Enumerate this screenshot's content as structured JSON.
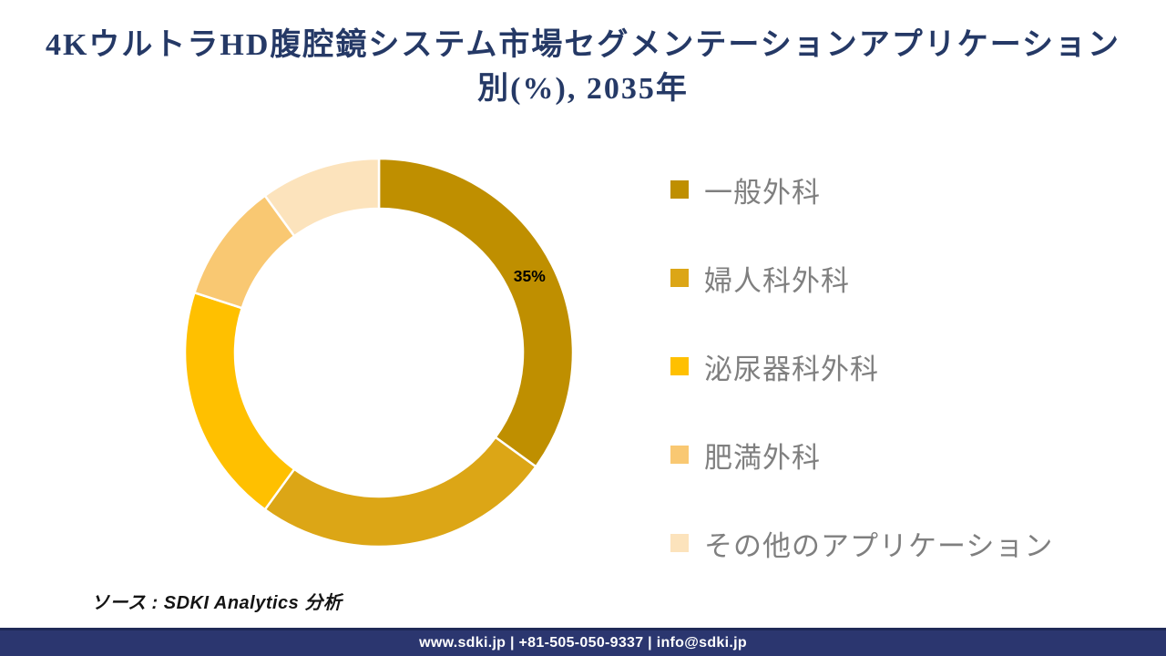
{
  "title": {
    "line1": "4KウルトラHD腹腔鏡システム市場セグメンテーションアプリケーション",
    "line2": "別(%), 2035年"
  },
  "chart_data": {
    "type": "pie",
    "subtype": "donut",
    "title": "4KウルトラHD腹腔鏡システム市場セグメンテーションアプリケーション別(%), 2035年",
    "unit": "%",
    "legend_position": "right",
    "segments": [
      {
        "label": "一般外科",
        "value": 35,
        "color": "#BF8F00",
        "data_label": "35%"
      },
      {
        "label": "婦人科外科",
        "value": 25,
        "color": "#DCA616",
        "data_label": ""
      },
      {
        "label": "泌尿器科外科",
        "value": 20,
        "color": "#FFC000",
        "data_label": ""
      },
      {
        "label": "肥満外科",
        "value": 10,
        "color": "#F9C872",
        "data_label": ""
      },
      {
        "label": "その他のアプリケーション",
        "value": 10,
        "color": "#FCE3BC",
        "data_label": ""
      }
    ]
  },
  "source": {
    "text": "ソース : SDKI Analytics 分析"
  },
  "footer": {
    "text": "www.sdki.jp | +81-505-050-9337 | info@sdki.jp",
    "background": "#2B366F"
  },
  "colors": {
    "title_text": "#253966",
    "legend_text": "#7F7F7F",
    "data_label_text": "#000000",
    "separator": "#FFFFFF"
  }
}
